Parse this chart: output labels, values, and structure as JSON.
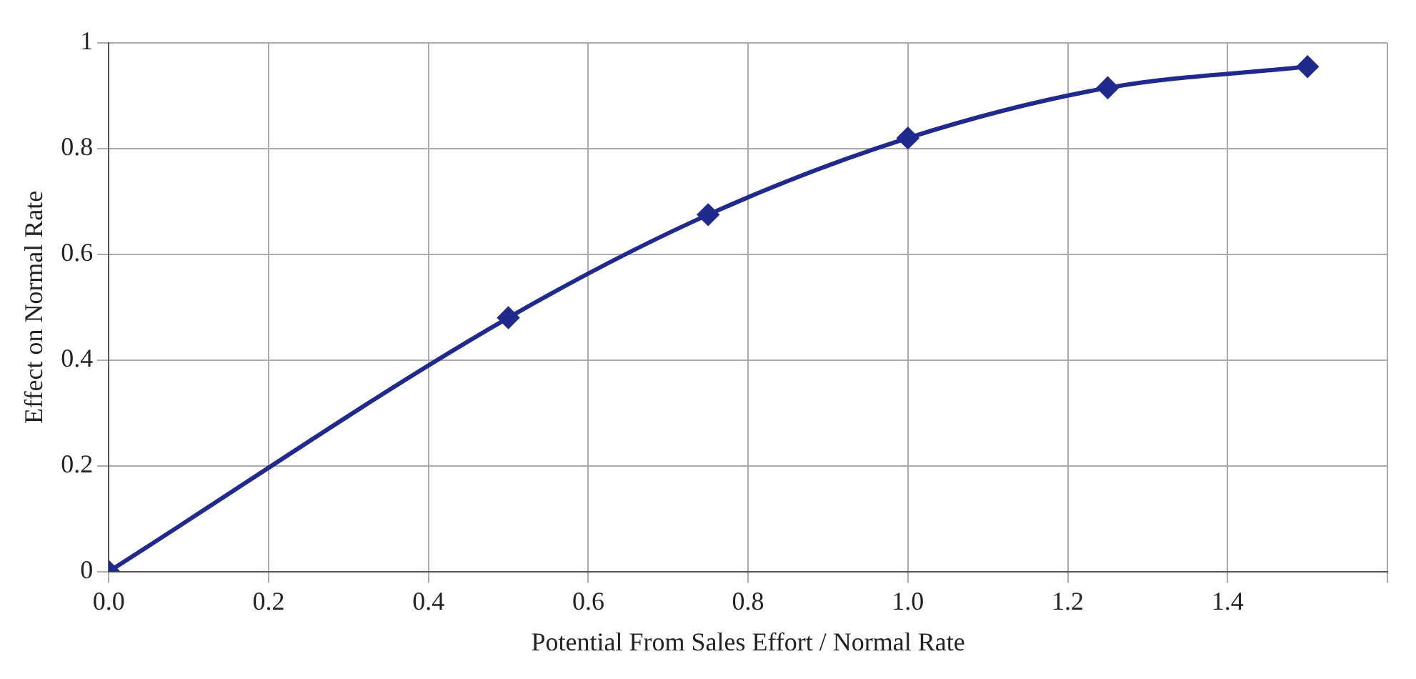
{
  "chart_data": {
    "type": "line",
    "xlabel": "Potential From Sales Effort / Normal Rate",
    "ylabel": "Effect on Normal Rate",
    "series": [
      {
        "color": "#1f2a8c",
        "x": [
          0,
          0.5,
          0.75,
          1.0,
          1.25,
          1.5
        ],
        "values": [
          0,
          0.48,
          0.675,
          0.82,
          0.915,
          0.955
        ]
      }
    ],
    "xlim": [
      0,
      1.6
    ],
    "xticks": [
      {
        "value": 0,
        "label": "0.0"
      },
      {
        "value": 0.2,
        "label": "0.2"
      },
      {
        "value": 0.4,
        "label": "0.4"
      },
      {
        "value": 0.6,
        "label": "0.6"
      },
      {
        "value": 0.8,
        "label": "0.8"
      },
      {
        "value": 1.0,
        "label": "1.0"
      },
      {
        "value": 1.2,
        "label": "1.2"
      },
      {
        "value": 1.4,
        "label": "1.4"
      },
      {
        "value": 1.6,
        "label": null
      }
    ],
    "ylim": [
      0,
      1
    ],
    "yticks": [
      0,
      0.2,
      0.4,
      0.6,
      0.8,
      1
    ],
    "grid": true,
    "legend": false,
    "marker": "diamond",
    "line_style": "solid"
  }
}
